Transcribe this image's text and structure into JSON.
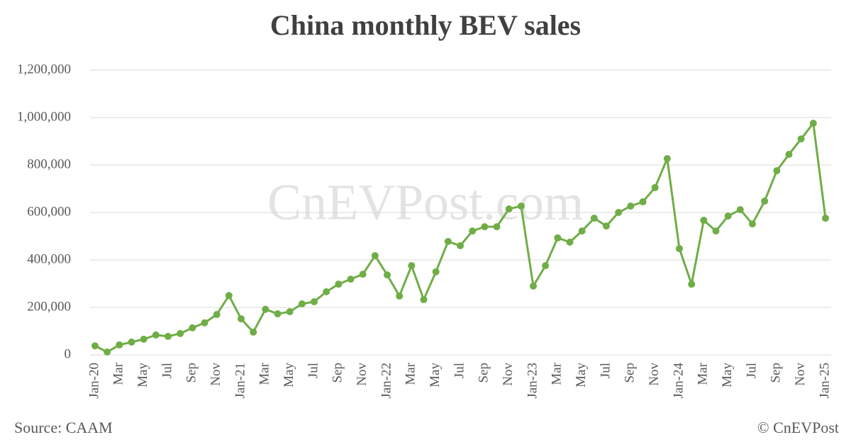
{
  "chart_data": {
    "type": "line",
    "title": "China monthly BEV sales",
    "watermark": "CnEVPost.com",
    "source": "Source: CAAM",
    "credit": "© CnEVPost",
    "categories": [
      "Jan-20",
      null,
      "Mar",
      null,
      "May",
      null,
      "Jul",
      null,
      "Sep",
      null,
      "Nov",
      null,
      "Jan-21",
      null,
      "Mar",
      null,
      "May",
      null,
      "Jul",
      null,
      "Sep",
      null,
      "Nov",
      null,
      "Jan-22",
      null,
      "Mar",
      null,
      "May",
      null,
      "Jul",
      null,
      "Sep",
      null,
      "Nov",
      null,
      "Jan-23",
      null,
      "Mar",
      null,
      "May",
      null,
      "Jul",
      null,
      "Sep",
      null,
      "Nov",
      null,
      "Jan-24",
      null,
      "Mar",
      null,
      "May",
      null,
      "Jul",
      null,
      "Sep",
      null,
      "Nov",
      null,
      "Jan-25"
    ],
    "values": [
      38000,
      12000,
      42000,
      54000,
      66000,
      84000,
      78000,
      90000,
      114000,
      135000,
      170000,
      250000,
      152000,
      96000,
      192000,
      173000,
      182000,
      215000,
      224000,
      266000,
      298000,
      319000,
      340000,
      418000,
      337000,
      248000,
      376000,
      233000,
      350000,
      478000,
      460000,
      522000,
      540000,
      540000,
      615000,
      627000,
      290000,
      376000,
      493000,
      475000,
      522000,
      576000,
      543000,
      600000,
      627000,
      645000,
      705000,
      827000,
      448000,
      298000,
      567000,
      522000,
      585000,
      612000,
      552000,
      648000,
      776000,
      845000,
      910000,
      976000,
      576000
    ],
    "color": "#70ad47",
    "ylim": [
      0,
      1200000
    ],
    "yticks": [
      0,
      {
        "value": 200000,
        "label": "200,000"
      },
      {
        "value": 400000,
        "label": "400,000"
      },
      {
        "value": 600000,
        "label": "600,000"
      },
      {
        "value": 800000,
        "label": "800,000"
      },
      {
        "value": 1000000,
        "label": "1,000,000"
      },
      {
        "value": 1200000,
        "label": "1,200,000"
      }
    ],
    "grid": true
  }
}
